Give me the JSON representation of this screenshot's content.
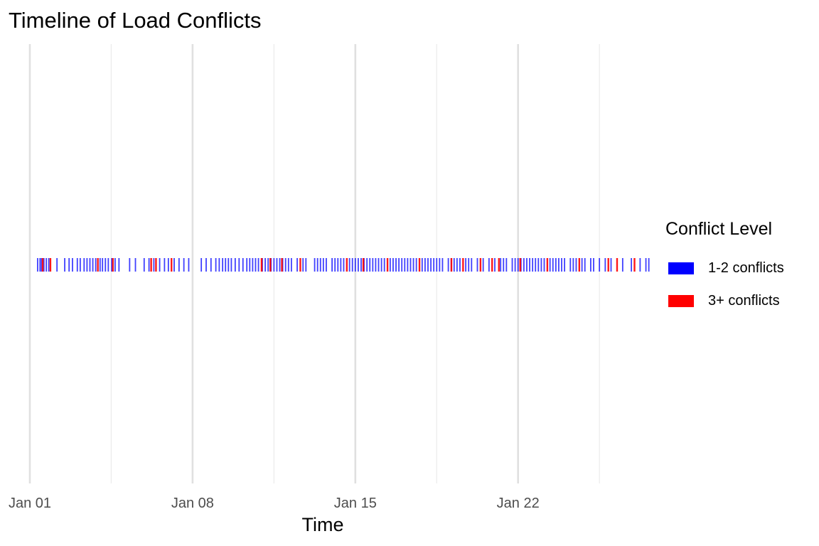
{
  "title": "Timeline of Load Conflicts",
  "legend": {
    "title": "Conflict Level",
    "items": [
      {
        "label": "1-2 conflicts",
        "color": "#0000FF"
      },
      {
        "label": "3+ conflicts",
        "color": "#FF0000"
      }
    ]
  },
  "chart_data": {
    "type": "timeline",
    "title": "Timeline of Load Conflicts",
    "xlabel": "Time",
    "ylabel": "",
    "x_type": "date",
    "xlim": [
      "2024-01-01",
      "2024-01-28"
    ],
    "x_ticks": [
      "Jan 01",
      "Jan 08",
      "Jan 15",
      "Jan 22"
    ],
    "grid": "vertical",
    "legend_position": "right",
    "series": [
      {
        "name": "1-2 conflicts",
        "color": "#0000FF",
        "times": [
          "2024-01-01 08:00",
          "2024-01-01 10:30",
          "2024-01-01 12:00",
          "2024-01-01 14:30",
          "2024-01-01 17:00",
          "2024-01-01 19:30",
          "2024-01-02 04:00",
          "2024-01-02 12:00",
          "2024-01-02 16:30",
          "2024-01-02 20:00",
          "2024-01-03 01:00",
          "2024-01-03 04:00",
          "2024-01-03 08:00",
          "2024-01-03 11:00",
          "2024-01-03 14:00",
          "2024-01-03 17:00",
          "2024-01-03 20:00",
          "2024-01-04 00:30",
          "2024-01-04 03:00",
          "2024-01-04 06:00",
          "2024-01-04 09:00",
          "2024-01-04 12:30",
          "2024-01-04 16:00",
          "2024-01-04 20:00",
          "2024-01-05 07:00",
          "2024-01-05 13:00",
          "2024-01-05 22:00",
          "2024-01-06 03:00",
          "2024-01-06 08:00",
          "2024-01-06 14:00",
          "2024-01-06 19:00",
          "2024-01-06 23:00",
          "2024-01-07 05:00",
          "2024-01-07 10:00",
          "2024-01-07 15:00",
          "2024-01-07 20:00",
          "2024-01-08 09:00",
          "2024-01-08 14:00",
          "2024-01-08 19:00",
          "2024-01-09 00:00",
          "2024-01-09 03:30",
          "2024-01-09 07:00",
          "2024-01-09 10:00",
          "2024-01-09 13:00",
          "2024-01-09 16:00",
          "2024-01-09 20:00",
          "2024-01-10 00:00",
          "2024-01-10 04:00",
          "2024-01-10 08:00",
          "2024-01-10 11:00",
          "2024-01-10 14:00",
          "2024-01-10 17:00",
          "2024-01-10 20:00",
          "2024-01-11 00:00",
          "2024-01-11 03:00",
          "2024-01-11 06:00",
          "2024-01-11 09:00",
          "2024-01-11 12:00",
          "2024-01-11 15:00",
          "2024-01-11 18:00",
          "2024-01-11 21:00",
          "2024-01-12 00:00",
          "2024-01-12 03:00",
          "2024-01-12 06:00",
          "2024-01-12 12:00",
          "2024-01-12 18:00",
          "2024-01-12 21:00",
          "2024-01-13 06:00",
          "2024-01-13 09:00",
          "2024-01-13 12:00",
          "2024-01-13 15:00",
          "2024-01-13 18:00",
          "2024-01-14 00:00",
          "2024-01-14 03:00",
          "2024-01-14 06:00",
          "2024-01-14 09:00",
          "2024-01-14 12:00",
          "2024-01-14 18:00",
          "2024-01-14 21:00",
          "2024-01-15 00:00",
          "2024-01-15 03:00",
          "2024-01-15 06:00",
          "2024-01-15 09:00",
          "2024-01-15 12:00",
          "2024-01-15 15:00",
          "2024-01-15 18:00",
          "2024-01-15 21:00",
          "2024-01-16 00:00",
          "2024-01-16 03:00",
          "2024-01-16 06:00",
          "2024-01-16 12:00",
          "2024-01-16 15:00",
          "2024-01-16 18:00",
          "2024-01-16 21:00",
          "2024-01-17 00:00",
          "2024-01-17 03:00",
          "2024-01-17 06:00",
          "2024-01-17 09:00",
          "2024-01-17 12:00",
          "2024-01-17 15:00",
          "2024-01-17 21:00",
          "2024-01-18 00:00",
          "2024-01-18 03:00",
          "2024-01-18 06:00",
          "2024-01-18 09:00",
          "2024-01-18 12:00",
          "2024-01-18 15:00",
          "2024-01-18 18:00",
          "2024-01-19 00:00",
          "2024-01-19 03:00",
          "2024-01-19 06:00",
          "2024-01-19 09:00",
          "2024-01-19 12:00",
          "2024-01-19 18:00",
          "2024-01-19 21:00",
          "2024-01-20 00:00",
          "2024-01-20 06:00",
          "2024-01-20 12:00",
          "2024-01-20 18:00",
          "2024-01-21 00:00",
          "2024-01-21 06:00",
          "2024-01-21 09:00",
          "2024-01-21 12:00",
          "2024-01-21 18:00",
          "2024-01-21 21:00",
          "2024-01-22 00:00",
          "2024-01-22 03:00",
          "2024-01-22 06:00",
          "2024-01-22 09:00",
          "2024-01-22 12:00",
          "2024-01-22 15:00",
          "2024-01-22 18:00",
          "2024-01-22 21:00",
          "2024-01-23 00:00",
          "2024-01-23 03:00",
          "2024-01-23 09:00",
          "2024-01-23 12:00",
          "2024-01-23 15:00",
          "2024-01-23 18:00",
          "2024-01-23 21:00",
          "2024-01-24 00:00",
          "2024-01-24 06:00",
          "2024-01-24 09:00",
          "2024-01-24 12:00",
          "2024-01-24 18:00",
          "2024-01-24 21:00",
          "2024-01-25 03:00",
          "2024-01-25 06:00",
          "2024-01-25 12:00",
          "2024-01-25 18:00",
          "2024-01-26 00:00",
          "2024-01-26 12:00",
          "2024-01-26 21:00",
          "2024-01-27 06:00",
          "2024-01-27 12:00",
          "2024-01-27 15:00"
        ]
      },
      {
        "name": "3+ conflicts",
        "color": "#FF0000",
        "times": [
          "2024-01-01 13:00",
          "2024-01-01 21:00",
          "2024-01-03 22:00",
          "2024-01-04 13:30",
          "2024-01-06 05:00",
          "2024-01-06 10:00",
          "2024-01-07 02:00",
          "2024-01-10 23:00",
          "2024-01-11 08:00",
          "2024-01-11 20:00",
          "2024-01-12 15:00",
          "2024-01-14 15:00",
          "2024-01-15 08:00",
          "2024-01-16 09:00",
          "2024-01-17 18:00",
          "2024-01-19 03:00",
          "2024-01-19 15:00",
          "2024-01-20 09:00",
          "2024-01-20 21:00",
          "2024-01-21 04:00",
          "2024-01-22 02:00",
          "2024-01-23 06:00",
          "2024-01-24 15:00",
          "2024-01-25 21:00",
          "2024-01-26 06:00",
          "2024-01-27 00:00"
        ]
      }
    ]
  }
}
